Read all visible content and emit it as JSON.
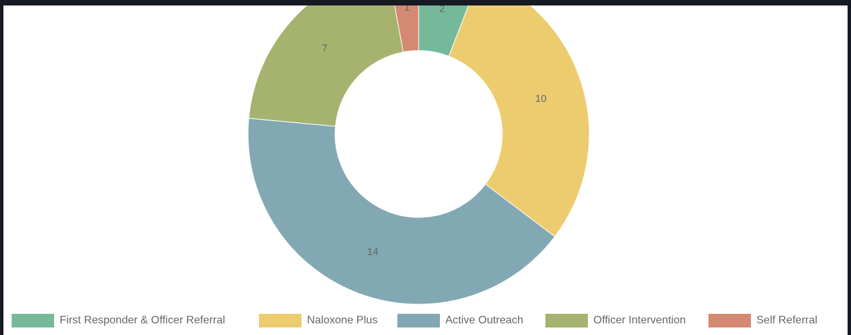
{
  "chart_data": {
    "type": "doughnut",
    "categories": [
      "First Responder & Officer Referral",
      "Naloxone Plus",
      "Active Outreach",
      "Officer Intervention",
      "Self Referral"
    ],
    "values": [
      2,
      10,
      14,
      7,
      1
    ],
    "colors": [
      "#76b99a",
      "#eccc6f",
      "#82a8b3",
      "#a5b36f",
      "#d48a72"
    ],
    "legend": "bottom"
  }
}
